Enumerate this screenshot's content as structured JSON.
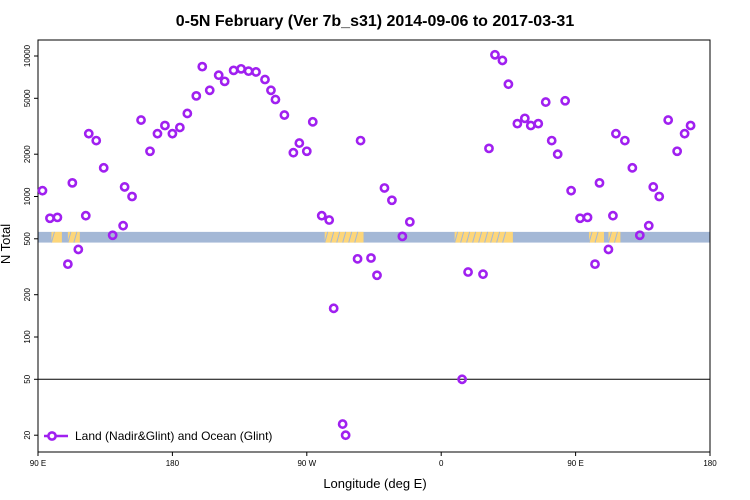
{
  "chart_data": {
    "type": "scatter",
    "title": "0-5N February (Ver 7b_s31)   2014-09-06 to 2017-03-31",
    "xlabel": "Longitude (deg E)",
    "ylabel": "N Total",
    "x_ticks": [
      {
        "value": 90,
        "label": "90 E"
      },
      {
        "value": 180,
        "label": "180"
      },
      {
        "value": 270,
        "label": "90 W"
      },
      {
        "value": 360,
        "label": "0"
      },
      {
        "value": 450,
        "label": "90 E"
      },
      {
        "value": 540,
        "label": "180"
      }
    ],
    "xlim": [
      90,
      540
    ],
    "ylim": [
      16,
      13000
    ],
    "yscale": "log",
    "y_ticks": [
      {
        "value": 20,
        "label": "20"
      },
      {
        "value": 50,
        "label": "50"
      },
      {
        "value": 100,
        "label": "100"
      },
      {
        "value": 200,
        "label": "200"
      },
      {
        "value": 500,
        "label": "500"
      },
      {
        "value": 1000,
        "label": "1000"
      },
      {
        "value": 2000,
        "label": "2000"
      },
      {
        "value": 5000,
        "label": "5000"
      },
      {
        "value": 10000,
        "label": "10000"
      }
    ],
    "reference_line": 50,
    "band": {
      "y_range": [
        470,
        560
      ],
      "base_color": "#a4b8d6",
      "land_color": "#fdd67a",
      "land_segments": [
        [
          99,
          106
        ],
        [
          110,
          118
        ],
        [
          282,
          308
        ],
        [
          369,
          408
        ],
        [
          459,
          469
        ],
        [
          472,
          480
        ]
      ]
    },
    "series": [
      {
        "name": "Land (Nadir&Glint) and Ocean (Glint)",
        "color": "#a020f0",
        "points": [
          {
            "x": 93,
            "y": 1100
          },
          {
            "x": 98,
            "y": 700
          },
          {
            "x": 103,
            "y": 710
          },
          {
            "x": 110,
            "y": 330
          },
          {
            "x": 113,
            "y": 1250
          },
          {
            "x": 117,
            "y": 420
          },
          {
            "x": 122,
            "y": 730
          },
          {
            "x": 124,
            "y": 2800
          },
          {
            "x": 129,
            "y": 2500
          },
          {
            "x": 134,
            "y": 1600
          },
          {
            "x": 140,
            "y": 530
          },
          {
            "x": 147,
            "y": 620
          },
          {
            "x": 148,
            "y": 1170
          },
          {
            "x": 153,
            "y": 1000
          },
          {
            "x": 159,
            "y": 3500
          },
          {
            "x": 165,
            "y": 2100
          },
          {
            "x": 170,
            "y": 2800
          },
          {
            "x": 175,
            "y": 3200
          },
          {
            "x": 180,
            "y": 2800
          },
          {
            "x": 185,
            "y": 3100
          },
          {
            "x": 190,
            "y": 3900
          },
          {
            "x": 196,
            "y": 5200
          },
          {
            "x": 200,
            "y": 8400
          },
          {
            "x": 205,
            "y": 5700
          },
          {
            "x": 211,
            "y": 7300
          },
          {
            "x": 215,
            "y": 6600
          },
          {
            "x": 221,
            "y": 7900
          },
          {
            "x": 226,
            "y": 8100
          },
          {
            "x": 231,
            "y": 7800
          },
          {
            "x": 236,
            "y": 7700
          },
          {
            "x": 242,
            "y": 6800
          },
          {
            "x": 246,
            "y": 5700
          },
          {
            "x": 249,
            "y": 4900
          },
          {
            "x": 255,
            "y": 3800
          },
          {
            "x": 261,
            "y": 2050
          },
          {
            "x": 265,
            "y": 2400
          },
          {
            "x": 270,
            "y": 2100
          },
          {
            "x": 274,
            "y": 3400
          },
          {
            "x": 280,
            "y": 730
          },
          {
            "x": 285,
            "y": 680
          },
          {
            "x": 288,
            "y": 160
          },
          {
            "x": 294,
            "y": 24
          },
          {
            "x": 296,
            "y": 20
          },
          {
            "x": 304,
            "y": 360
          },
          {
            "x": 306,
            "y": 2500
          },
          {
            "x": 313,
            "y": 365
          },
          {
            "x": 317,
            "y": 275
          },
          {
            "x": 322,
            "y": 1150
          },
          {
            "x": 327,
            "y": 940
          },
          {
            "x": 334,
            "y": 520
          },
          {
            "x": 339,
            "y": 660
          },
          {
            "x": 374,
            "y": 50
          },
          {
            "x": 378,
            "y": 290
          },
          {
            "x": 388,
            "y": 280
          },
          {
            "x": 392,
            "y": 2200
          },
          {
            "x": 396,
            "y": 10200
          },
          {
            "x": 401,
            "y": 9300
          },
          {
            "x": 405,
            "y": 6300
          },
          {
            "x": 411,
            "y": 3300
          },
          {
            "x": 416,
            "y": 3600
          },
          {
            "x": 420,
            "y": 3200
          },
          {
            "x": 425,
            "y": 3300
          },
          {
            "x": 430,
            "y": 4700
          },
          {
            "x": 434,
            "y": 2500
          },
          {
            "x": 438,
            "y": 2000
          },
          {
            "x": 443,
            "y": 4800
          },
          {
            "x": 447,
            "y": 1100
          },
          {
            "x": 453,
            "y": 700
          },
          {
            "x": 458,
            "y": 710
          },
          {
            "x": 463,
            "y": 330
          },
          {
            "x": 466,
            "y": 1250
          },
          {
            "x": 472,
            "y": 420
          },
          {
            "x": 475,
            "y": 730
          },
          {
            "x": 477,
            "y": 2800
          },
          {
            "x": 483,
            "y": 2500
          },
          {
            "x": 488,
            "y": 1600
          },
          {
            "x": 493,
            "y": 530
          },
          {
            "x": 499,
            "y": 620
          },
          {
            "x": 502,
            "y": 1170
          },
          {
            "x": 506,
            "y": 1000
          },
          {
            "x": 512,
            "y": 3500
          },
          {
            "x": 518,
            "y": 2100
          },
          {
            "x": 523,
            "y": 2800
          },
          {
            "x": 527,
            "y": 3200
          }
        ]
      }
    ],
    "legend": {
      "label": "Land (Nadir&Glint) and Ocean (Glint)",
      "position": "bottom-left"
    }
  }
}
